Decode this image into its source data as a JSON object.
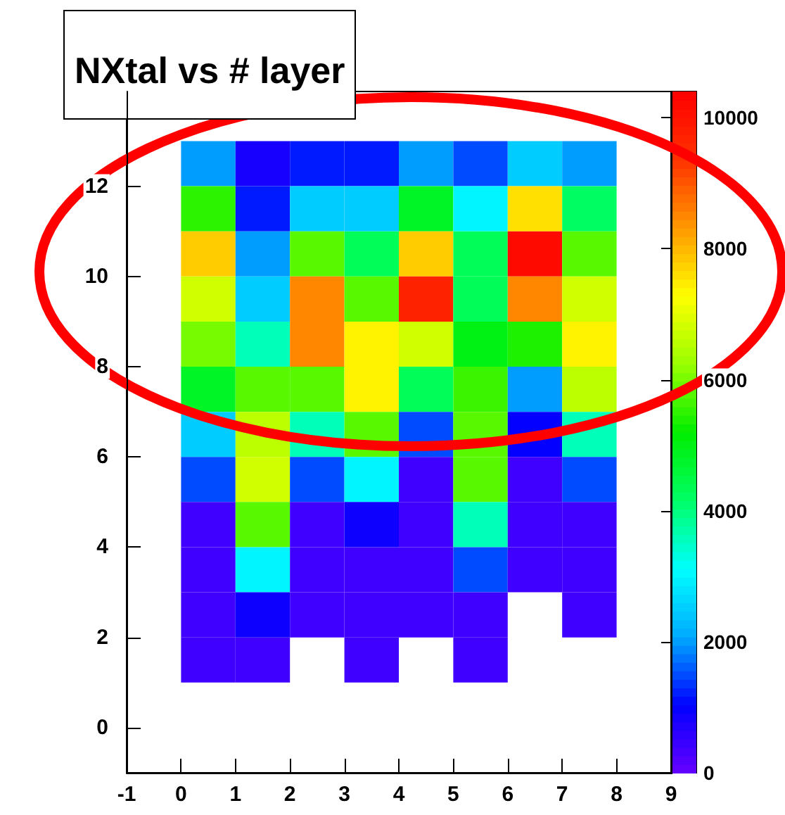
{
  "chart_data": {
    "type": "heatmap",
    "title": "NXtal vs # layer",
    "x": [
      0.5,
      1.5,
      2.5,
      3.5,
      4.5,
      5.5,
      6.5,
      7.5
    ],
    "y": [
      12.5,
      11.5,
      10.5,
      9.5,
      8.5,
      7.5,
      6.5,
      5.5,
      4.5,
      3.5,
      2.5,
      1.5
    ],
    "cells": [
      [
        2000,
        800,
        1200,
        1200,
        2000,
        1500,
        2500,
        2000
      ],
      [
        5500,
        1200,
        2500,
        2500,
        4800,
        3000,
        7600,
        4200
      ],
      [
        7800,
        2000,
        5800,
        4300,
        7800,
        4300,
        10200,
        5800
      ],
      [
        6800,
        2500,
        8500,
        5800,
        9700,
        4300,
        8500,
        6800
      ],
      [
        6000,
        3600,
        8500,
        7400,
        6800,
        5000,
        5400,
        7400
      ],
      [
        4800,
        5800,
        5800,
        7400,
        4300,
        5600,
        2000,
        6600
      ],
      [
        2500,
        6600,
        3600,
        5800,
        1500,
        5800,
        1000,
        3600
      ],
      [
        1500,
        6800,
        1500,
        3000,
        400,
        5800,
        400,
        1500
      ],
      [
        400,
        5800,
        400,
        900,
        400,
        3600,
        400,
        400
      ],
      [
        400,
        3000,
        400,
        400,
        400,
        1500,
        400,
        400
      ],
      [
        400,
        900,
        400,
        400,
        400,
        400,
        null,
        400
      ],
      [
        400,
        400,
        null,
        400,
        null,
        400,
        null,
        null
      ]
    ],
    "xlim": [
      -1,
      9
    ],
    "xticks": [
      -1,
      0,
      1,
      2,
      3,
      4,
      5,
      6,
      7,
      8,
      9
    ],
    "ylim": [
      -1,
      14.1
    ],
    "yticks": [
      0,
      2,
      4,
      6,
      8,
      10,
      12
    ],
    "clim": [
      0,
      10400
    ],
    "cticks": [
      0,
      2000,
      4000,
      6000,
      8000,
      10000
    ]
  }
}
